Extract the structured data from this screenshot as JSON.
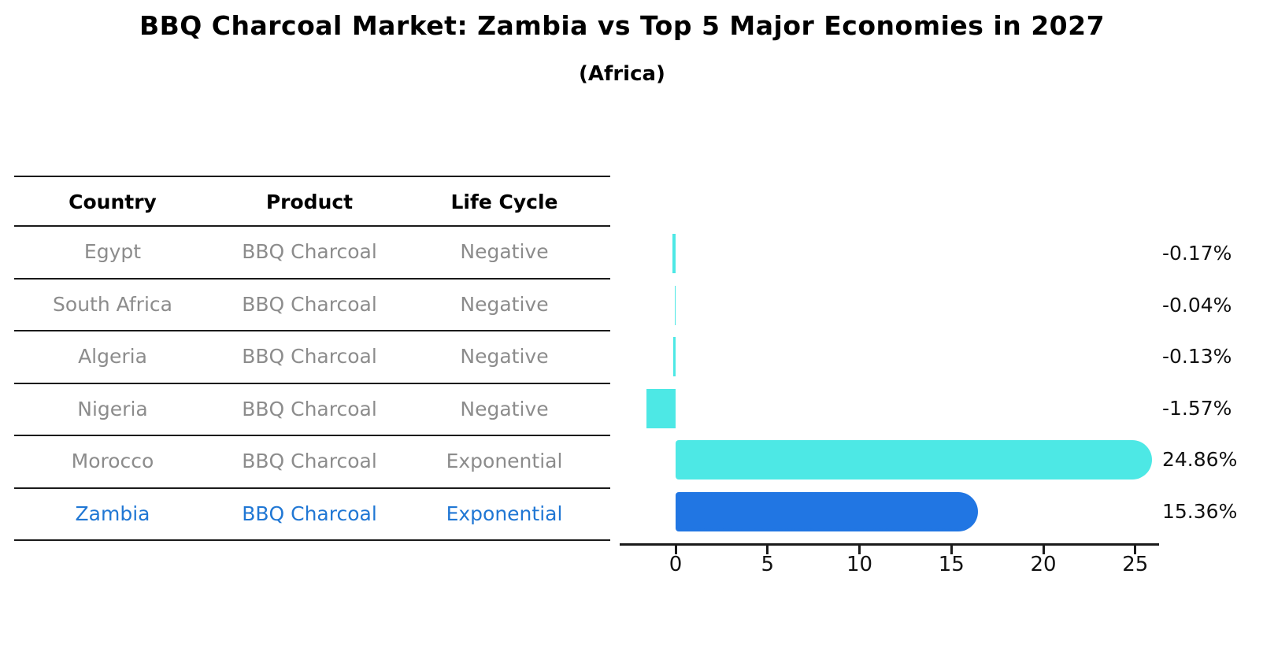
{
  "title": "BBQ Charcoal Market: Zambia vs Top 5 Major Economies in 2027",
  "subtitle": "(Africa)",
  "table": {
    "headers": [
      "Country",
      "Product",
      "Life Cycle"
    ],
    "rows": [
      {
        "country": "Egypt",
        "product": "BBQ Charcoal",
        "life_cycle": "Negative",
        "highlight": false
      },
      {
        "country": "South Africa",
        "product": "BBQ Charcoal",
        "life_cycle": "Negative",
        "highlight": false
      },
      {
        "country": "Algeria",
        "product": "BBQ Charcoal",
        "life_cycle": "Negative",
        "highlight": false
      },
      {
        "country": "Nigeria",
        "product": "BBQ Charcoal",
        "life_cycle": "Negative",
        "highlight": false
      },
      {
        "country": "Morocco",
        "product": "BBQ Charcoal",
        "life_cycle": "Exponential",
        "highlight": false
      },
      {
        "country": "Zambia",
        "product": "BBQ Charcoal",
        "life_cycle": "Exponential",
        "highlight": true
      }
    ]
  },
  "chart_data": {
    "type": "bar",
    "orientation": "horizontal",
    "title": "BBQ Charcoal Market: Zambia vs Top 5 Major Economies in 2027",
    "subtitle": "(Africa)",
    "categories": [
      "Egypt",
      "South Africa",
      "Algeria",
      "Nigeria",
      "Morocco",
      "Zambia"
    ],
    "values": [
      -0.17,
      -0.04,
      -0.13,
      -1.57,
      24.86,
      15.36
    ],
    "value_labels": [
      "-0.17%",
      "-0.04%",
      "-0.13%",
      "-1.57%",
      "24.86%",
      "15.36%"
    ],
    "x_ticks": [
      0,
      5,
      10,
      15,
      20,
      25
    ],
    "xlim": [
      -3,
      26.3
    ],
    "grid": false,
    "legend": false,
    "highlight_index": 5,
    "highlight_style": "dotted-border",
    "colors": {
      "bar_default": "#4DE8E5",
      "bar_highlight": "#2176E3",
      "highlight_text": "#2077D4",
      "muted_text": "#8C8C8C",
      "axis": "#1A1A1A"
    }
  }
}
